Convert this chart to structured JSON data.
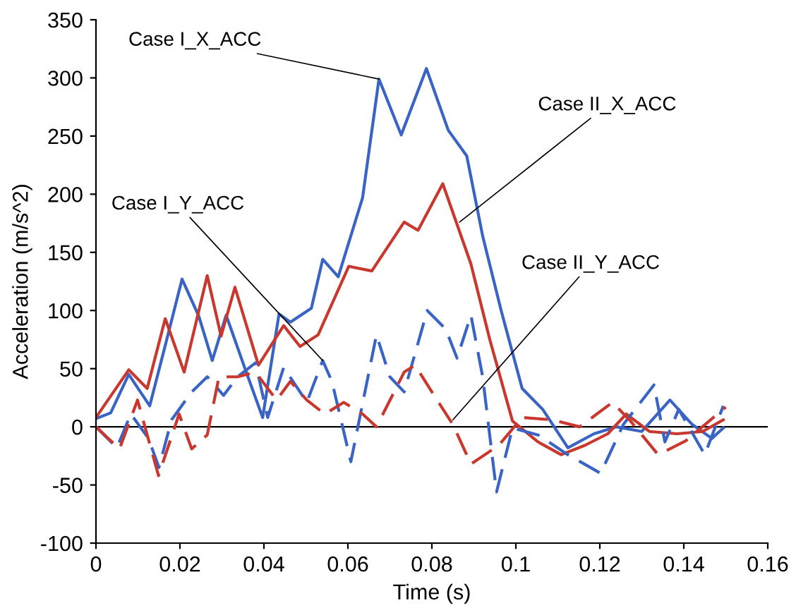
{
  "chart_data": {
    "type": "line",
    "xlabel": "Time (s)",
    "ylabel": "Acceleration (m/s^2)",
    "xlim": [
      0,
      0.16
    ],
    "xticks": [
      0,
      0.02,
      0.04,
      0.06,
      0.08,
      {
        "value": 0.1,
        "label": "0.1"
      },
      0.12,
      0.14,
      0.16
    ],
    "ylim": [
      -100,
      350
    ],
    "yticks": [
      -100,
      -50,
      0,
      50,
      100,
      150,
      200,
      250,
      300,
      350
    ],
    "grid": false,
    "legend": false,
    "marker": "none",
    "ref_lines": [
      {
        "axis": "y",
        "value": 0,
        "color": "#000000"
      }
    ],
    "series": [
      {
        "color": "#3a64c4",
        "line_style": "solid",
        "x": [
          0,
          0.0035,
          0.0078,
          0.0128,
          0.0165,
          0.0205,
          0.0245,
          0.0277,
          0.031,
          0.0355,
          0.0397,
          0.0436,
          0.0463,
          0.0513,
          0.054,
          0.0577,
          0.0635,
          0.0674,
          0.0727,
          0.0787,
          0.0839,
          0.0883,
          0.0921,
          0.0965,
          0.1015,
          0.1064,
          0.1124,
          0.1186,
          0.124,
          0.13,
          0.1367,
          0.142,
          0.1467,
          0.1494
        ],
        "values": [
          7,
          12,
          45,
          18,
          70,
          127,
          95,
          57,
          96,
          50,
          8,
          97,
          90,
          102,
          144,
          129,
          197,
          299,
          251,
          308,
          255,
          233,
          164,
          100,
          33,
          15,
          -18,
          -6,
          0,
          -4,
          23,
          2,
          -10,
          -1
        ]
      },
      {
        "color": "#c8382e",
        "line_style": "solid",
        "x": [
          0,
          0.0078,
          0.0122,
          0.0165,
          0.021,
          0.0265,
          0.0298,
          0.0331,
          0.0387,
          0.0447,
          0.0486,
          0.0529,
          0.0602,
          0.0657,
          0.0734,
          0.0767,
          0.0826,
          0.0893,
          0.0938,
          0.0992,
          0.1053,
          0.1108,
          0.1164,
          0.1219,
          0.1263,
          0.1318,
          0.1384,
          0.1445,
          0.1494
        ],
        "values": [
          8,
          49,
          33,
          93,
          47,
          130,
          78,
          120,
          53,
          87,
          69,
          79,
          138,
          134,
          176,
          169,
          209,
          140,
          75,
          5,
          -13,
          -24,
          -16,
          -6,
          11,
          -4,
          -6,
          -4,
          6
        ]
      },
      {
        "color": "#3a64c4",
        "line_style": "dashed",
        "x": [
          0,
          0.005,
          0.0083,
          0.0125,
          0.015,
          0.018,
          0.0228,
          0.0265,
          0.0304,
          0.0337,
          0.038,
          0.0409,
          0.0447,
          0.0486,
          0.0502,
          0.054,
          0.0562,
          0.0607,
          0.0668,
          0.07,
          0.0734,
          0.0789,
          0.0833,
          0.086,
          0.0893,
          0.0921,
          0.0954,
          0.0992,
          0.1053,
          0.1124,
          0.1202,
          0.1256,
          0.1329,
          0.1355,
          0.1388,
          0.145,
          0.1494
        ],
        "values": [
          0,
          -18,
          11,
          -10,
          -35,
          6,
          30,
          43,
          27,
          43,
          55,
          8,
          51,
          30,
          21,
          57,
          39,
          -30,
          79,
          43,
          30,
          100,
          84,
          59,
          96,
          43,
          -56,
          -1,
          -7,
          -24,
          -40,
          2,
          36,
          -13,
          15,
          -24,
          18
        ]
      },
      {
        "color": "#c8382e",
        "line_style": "dashed",
        "x": [
          0,
          0.0056,
          0.0099,
          0.0149,
          0.0198,
          0.0228,
          0.0265,
          0.0293,
          0.0337,
          0.038,
          0.043,
          0.0463,
          0.0502,
          0.0545,
          0.059,
          0.0635,
          0.0668,
          0.0734,
          0.076,
          0.08,
          0.085,
          0.0893,
          0.0959,
          0.1015,
          0.1087,
          0.1152,
          0.123,
          0.1273,
          0.1339,
          0.1405,
          0.15
        ],
        "values": [
          0,
          -19,
          23,
          -42,
          11,
          -19,
          -7,
          43,
          43,
          47,
          23,
          39,
          23,
          11,
          21,
          11,
          0,
          47,
          53,
          30,
          2,
          -32,
          -16,
          8,
          6,
          0,
          21,
          5,
          -24,
          -12,
          17
        ]
      }
    ],
    "annotations": [
      {
        "text": "Case I_X_ACC",
        "x": 0.0674,
        "y": 299
      },
      {
        "text": "Case I_Y_ACC",
        "x": 0.054,
        "y": 57
      },
      {
        "text": "Case II_X_ACC",
        "x": 0.0866,
        "y": 176
      },
      {
        "text": "Case II_Y_ACC",
        "x": 0.085,
        "y": 6
      }
    ]
  }
}
